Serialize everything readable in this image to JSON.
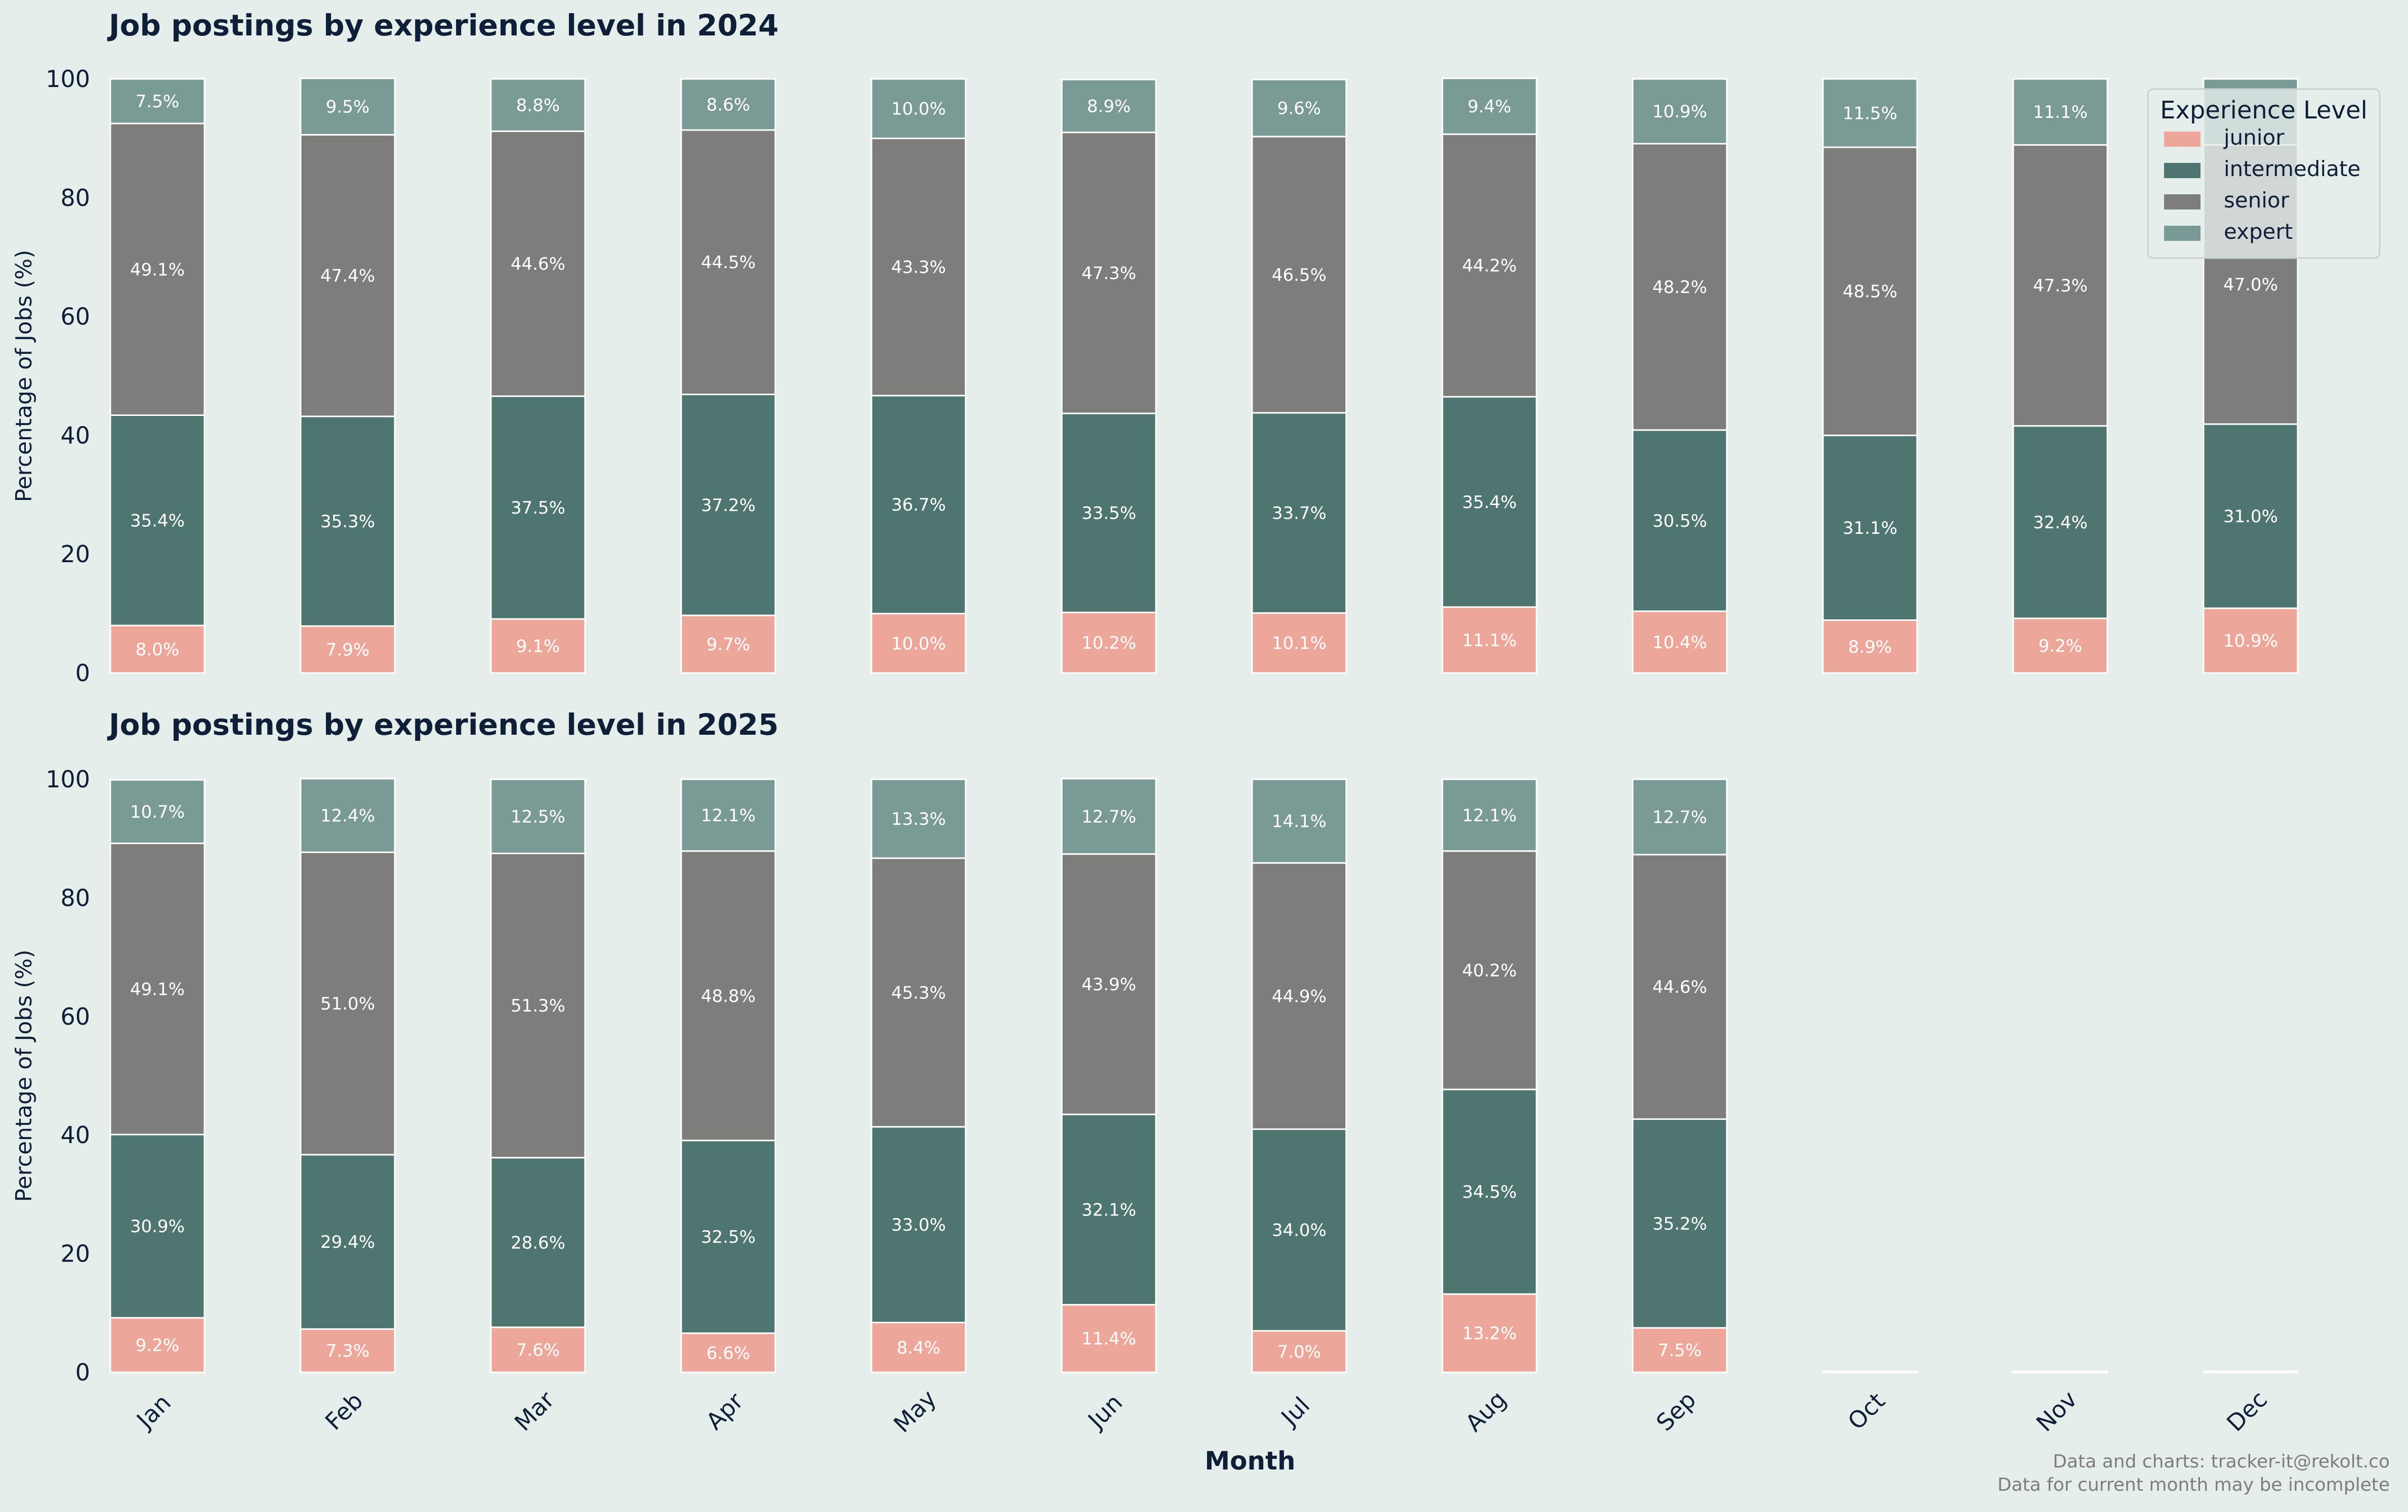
{
  "colors": {
    "background": "#e6eeeb",
    "title": "#0f1f38",
    "junior": "#eca69a",
    "intermediate": "#4f7571",
    "senior": "#7d7e7c",
    "expert": "#7a9a96",
    "segment_label": "#ffffff",
    "bar_edge": "#ffffff",
    "footer": "#7d7e7c"
  },
  "footer": {
    "line1": "Data and charts: tracker-it@rekolt.co",
    "line2": "Data for current month may be incomplete"
  },
  "chart_data": [
    {
      "type": "bar",
      "stacked": true,
      "title": "Job postings by experience level in 2024",
      "xlabel": "",
      "ylabel": "Percentage of Jobs (%)",
      "ylim": [
        0,
        100
      ],
      "yticks": [
        0,
        20,
        40,
        60,
        80,
        100
      ],
      "grid": false,
      "categories": [
        "Jan",
        "Feb",
        "Mar",
        "Apr",
        "May",
        "Jun",
        "Jul",
        "Aug",
        "Sep",
        "Oct",
        "Nov",
        "Dec"
      ],
      "legend": {
        "title": "Experience Level",
        "placement": "top-right",
        "entries": [
          "junior",
          "intermediate",
          "senior",
          "expert"
        ]
      },
      "series": [
        {
          "name": "junior",
          "values": [
            8.0,
            7.9,
            9.1,
            9.7,
            10.0,
            10.2,
            10.1,
            11.1,
            10.4,
            8.9,
            9.2,
            10.9
          ],
          "labels": [
            "8.0%",
            "7.9%",
            "9.1%",
            "9.7%",
            "10.0%",
            "10.2%",
            "10.1%",
            "11.1%",
            "10.4%",
            "8.9%",
            "9.2%",
            "10.9%"
          ]
        },
        {
          "name": "intermediate",
          "values": [
            35.4,
            35.3,
            37.5,
            37.2,
            36.7,
            33.5,
            33.7,
            35.4,
            30.5,
            31.1,
            32.4,
            31.0
          ],
          "labels": [
            "35.4%",
            "35.3%",
            "37.5%",
            "37.2%",
            "36.7%",
            "33.5%",
            "33.7%",
            "35.4%",
            "30.5%",
            "31.1%",
            "32.4%",
            "31.0%"
          ]
        },
        {
          "name": "senior",
          "values": [
            49.1,
            47.4,
            44.6,
            44.5,
            43.3,
            47.3,
            46.5,
            44.2,
            48.2,
            48.5,
            47.3,
            47.0
          ],
          "labels": [
            "49.1%",
            "47.4%",
            "44.6%",
            "44.5%",
            "43.3%",
            "47.3%",
            "46.5%",
            "44.2%",
            "48.2%",
            "48.5%",
            "47.3%",
            "47.0%"
          ]
        },
        {
          "name": "expert",
          "values": [
            7.5,
            9.5,
            8.8,
            8.6,
            10.0,
            8.9,
            9.6,
            9.4,
            10.9,
            11.5,
            11.1,
            11.1
          ],
          "labels": [
            "7.5%",
            "9.5%",
            "8.8%",
            "8.6%",
            "10.0%",
            "8.9%",
            "9.6%",
            "9.4%",
            "10.9%",
            "11.5%",
            "11.1%",
            ""
          ]
        }
      ]
    },
    {
      "type": "bar",
      "stacked": true,
      "title": "Job postings by experience level in 2025",
      "xlabel": "Month",
      "ylabel": "Percentage of Jobs (%)",
      "ylim": [
        0,
        100
      ],
      "yticks": [
        0,
        20,
        40,
        60,
        80,
        100
      ],
      "grid": false,
      "categories": [
        "Jan",
        "Feb",
        "Mar",
        "Apr",
        "May",
        "Jun",
        "Jul",
        "Aug",
        "Sep",
        "Oct",
        "Nov",
        "Dec"
      ],
      "series": [
        {
          "name": "junior",
          "values": [
            9.2,
            7.3,
            7.6,
            6.6,
            8.4,
            11.4,
            7.0,
            13.2,
            7.5,
            0,
            0,
            0
          ],
          "labels": [
            "9.2%",
            "7.3%",
            "7.6%",
            "6.6%",
            "8.4%",
            "11.4%",
            "7.0%",
            "13.2%",
            "7.5%",
            "",
            "",
            ""
          ]
        },
        {
          "name": "intermediate",
          "values": [
            30.9,
            29.4,
            28.6,
            32.5,
            33.0,
            32.1,
            34.0,
            34.5,
            35.2,
            0,
            0,
            0
          ],
          "labels": [
            "30.9%",
            "29.4%",
            "28.6%",
            "32.5%",
            "33.0%",
            "32.1%",
            "34.0%",
            "34.5%",
            "35.2%",
            "",
            "",
            ""
          ]
        },
        {
          "name": "senior",
          "values": [
            49.1,
            51.0,
            51.3,
            48.8,
            45.3,
            43.9,
            44.9,
            40.2,
            44.6,
            0,
            0,
            0
          ],
          "labels": [
            "49.1%",
            "51.0%",
            "51.3%",
            "48.8%",
            "45.3%",
            "43.9%",
            "44.9%",
            "40.2%",
            "44.6%",
            "",
            "",
            ""
          ]
        },
        {
          "name": "expert",
          "values": [
            10.7,
            12.4,
            12.5,
            12.1,
            13.3,
            12.7,
            14.1,
            12.1,
            12.7,
            0,
            0,
            0
          ],
          "labels": [
            "10.7%",
            "12.4%",
            "12.5%",
            "12.1%",
            "13.3%",
            "12.7%",
            "14.1%",
            "12.1%",
            "12.7%",
            "",
            "",
            ""
          ]
        }
      ]
    }
  ]
}
